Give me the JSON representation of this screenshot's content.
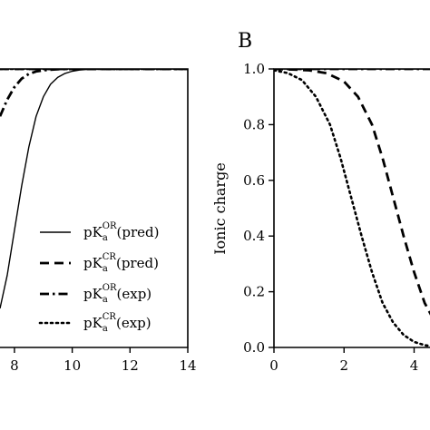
{
  "chart_data": [
    {
      "type": "line",
      "panel_label": "",
      "xlabel": "",
      "ylabel": "",
      "xlim": [
        7.5,
        14
      ],
      "ylim": [
        0,
        1
      ],
      "x_ticks": [
        8,
        10,
        12,
        14
      ],
      "x_tick_labels": [
        "8",
        "10",
        "12",
        "14"
      ],
      "grid": false,
      "legend": {
        "placement": "bottom-right",
        "entries": [
          {
            "pre": "pK",
            "sub": "a",
            "sup": "OR",
            "post": "(pred)",
            "style": "solid"
          },
          {
            "pre": "pK",
            "sub": "a",
            "sup": "CR",
            "post": "(pred)",
            "style": "dashed"
          },
          {
            "pre": "pK",
            "sub": "a",
            "sup": "OR",
            "post": "(exp)",
            "style": "dashdot"
          },
          {
            "pre": "pK",
            "sub": "a",
            "sup": "CR",
            "post": "(exp)",
            "style": "dotted"
          }
        ]
      },
      "series": [
        {
          "style": "solid",
          "x": [
            7.5,
            7.75,
            8.0,
            8.25,
            8.5,
            8.75,
            9.0,
            9.25,
            9.5,
            9.75,
            10.0,
            10.25,
            10.5,
            10.75,
            11.0,
            11.5,
            12,
            13,
            14
          ],
          "y": [
            0.14,
            0.26,
            0.42,
            0.58,
            0.72,
            0.83,
            0.9,
            0.945,
            0.97,
            0.984,
            0.992,
            0.996,
            0.998,
            0.999,
            1.0,
            1.0,
            1.0,
            1.0,
            1.0
          ]
        },
        {
          "style": "dashed",
          "x": [
            7.5,
            8,
            9,
            10,
            11,
            12,
            13,
            14
          ],
          "y": [
            1.0,
            1.0,
            1.0,
            1.0,
            1.0,
            1.0,
            1.0,
            1.0
          ]
        },
        {
          "style": "dashdot",
          "x": [
            7.5,
            7.75,
            8.0,
            8.25,
            8.5,
            8.75,
            9.0,
            9.5,
            10,
            11,
            12,
            13,
            14
          ],
          "y": [
            0.83,
            0.89,
            0.935,
            0.965,
            0.982,
            0.991,
            0.995,
            0.999,
            1.0,
            1.0,
            1.0,
            1.0,
            1.0
          ]
        },
        {
          "style": "dotted",
          "x": [
            7.5,
            8,
            9,
            10,
            11,
            12,
            13,
            14
          ],
          "y": [
            1.0,
            1.0,
            1.0,
            1.0,
            1.0,
            1.0,
            1.0,
            1.0
          ]
        }
      ]
    },
    {
      "type": "line",
      "panel_label": "B",
      "xlabel": "",
      "ylabel": "Ionic charge",
      "xlim": [
        0,
        5.8
      ],
      "ylim": [
        0,
        1
      ],
      "x_ticks": [
        0,
        2,
        4
      ],
      "x_tick_labels": [
        "0",
        "2",
        "4"
      ],
      "y_ticks": [
        0,
        0.2,
        0.4,
        0.6,
        0.8,
        1.0
      ],
      "y_tick_labels": [
        "0.0",
        "0.2",
        "0.4",
        "0.6",
        "0.8",
        "1.0"
      ],
      "grid": false,
      "series": [
        {
          "style": "solid",
          "x": [
            0,
            1,
            2,
            3,
            4,
            5,
            5.8
          ],
          "y": [
            1.0,
            1.0,
            1.0,
            1.0,
            1.0,
            1.0,
            1.0
          ]
        },
        {
          "style": "dashed",
          "x": [
            0,
            0.5,
            1.0,
            1.5,
            2.0,
            2.4,
            2.8,
            3.1,
            3.4,
            3.7,
            4.0,
            4.3,
            4.6,
            4.9,
            5.2,
            5.5,
            5.8
          ],
          "y": [
            1.0,
            0.998,
            0.995,
            0.985,
            0.955,
            0.9,
            0.8,
            0.68,
            0.54,
            0.4,
            0.27,
            0.16,
            0.09,
            0.045,
            0.02,
            0.008,
            0.003
          ]
        },
        {
          "style": "dotted",
          "x": [
            0,
            0.4,
            0.8,
            1.2,
            1.6,
            1.9,
            2.2,
            2.5,
            2.8,
            3.1,
            3.4,
            3.7,
            4.0,
            4.3,
            4.6,
            5.0,
            5.4,
            5.8
          ],
          "y": [
            0.995,
            0.985,
            0.96,
            0.9,
            0.8,
            0.68,
            0.54,
            0.4,
            0.27,
            0.16,
            0.09,
            0.045,
            0.02,
            0.008,
            0.003,
            0.001,
            0.0,
            0.0
          ]
        },
        {
          "style": "dashdot",
          "x": [
            0,
            1,
            2,
            3,
            4,
            5,
            5.8
          ],
          "y": [
            1.0,
            1.0,
            1.0,
            1.0,
            1.0,
            1.0,
            1.0
          ]
        }
      ]
    }
  ]
}
